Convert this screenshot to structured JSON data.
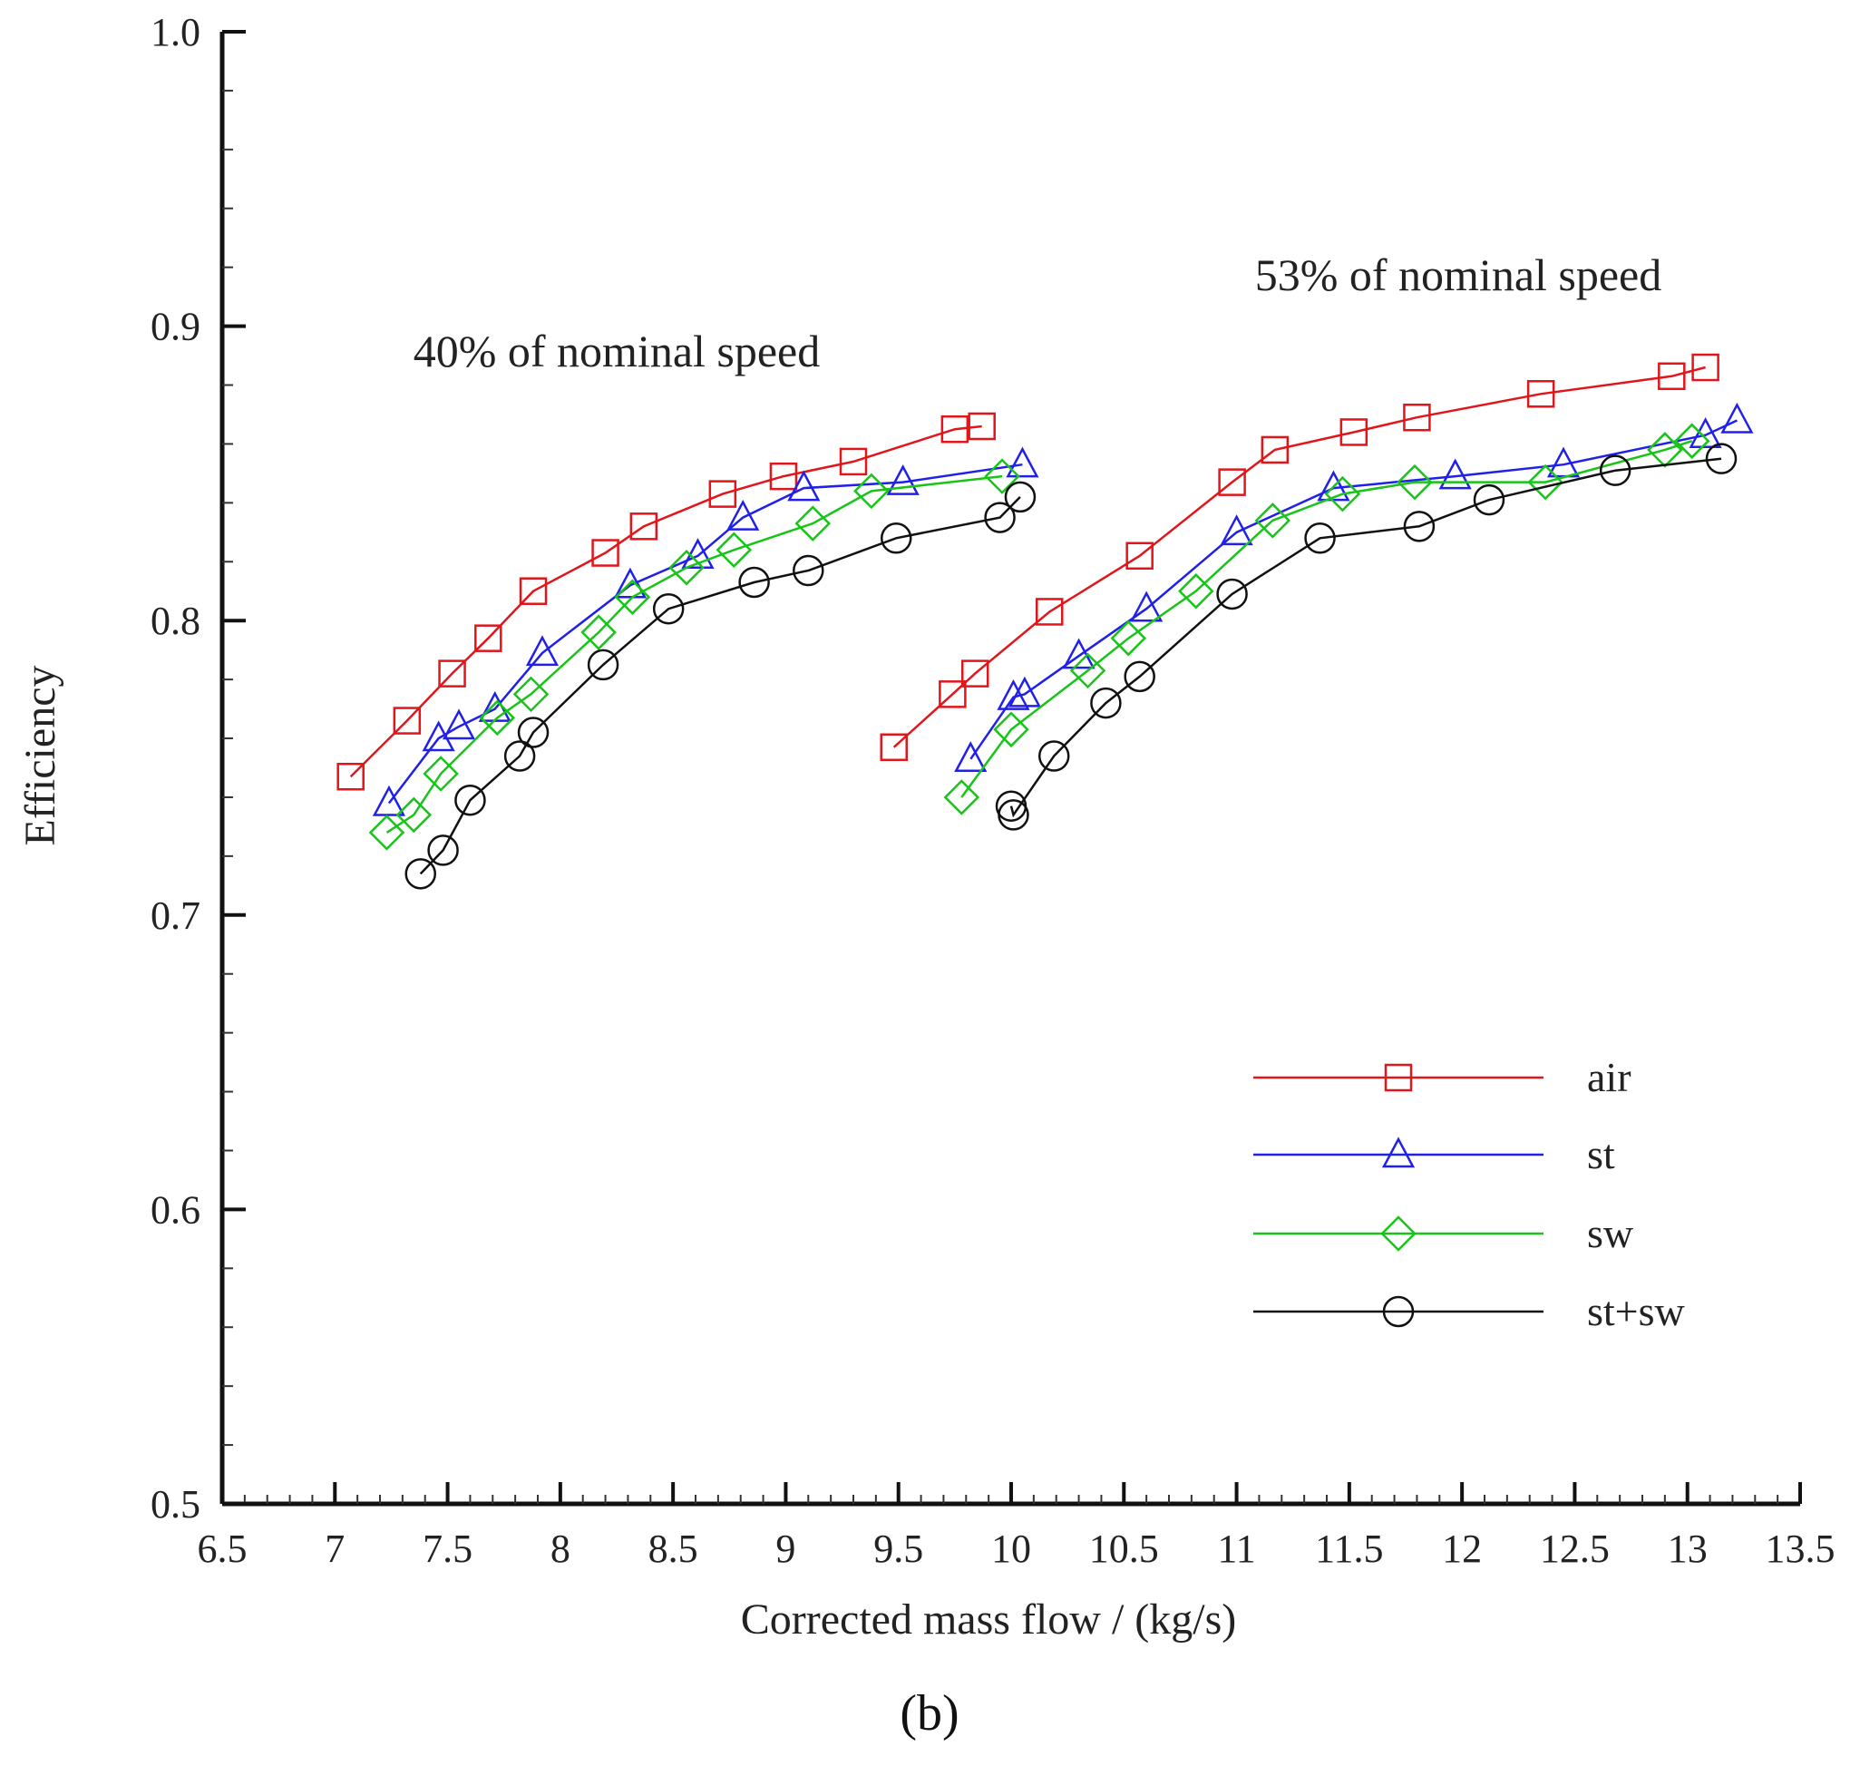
{
  "chart_data": {
    "type": "line",
    "xlabel": "Corrected mass flow / (kg/s)",
    "ylabel": "Efficiency",
    "xlim": [
      6.5,
      13.5
    ],
    "ylim": [
      0.5,
      1.0
    ],
    "x_major_ticks": [
      6.5,
      7,
      7.5,
      8,
      8.5,
      9,
      9.5,
      10,
      10.5,
      11,
      11.5,
      12,
      12.5,
      13,
      13.5
    ],
    "x_tick_labels": [
      "6.5",
      "7",
      "7.5",
      "8",
      "8.5",
      "9",
      "9.5",
      "10",
      "10.5",
      "11",
      "11.5",
      "12",
      "12.5",
      "13",
      "13.5"
    ],
    "x_minor_step": 0.1,
    "y_major_ticks": [
      0.5,
      0.6,
      0.7,
      0.8,
      0.9,
      1.0
    ],
    "y_tick_labels": [
      "0.5",
      "0.6",
      "0.7",
      "0.8",
      "0.9",
      "1.0"
    ],
    "y_minor_step": 0.02,
    "grid": false,
    "legend_position": "bottom-right",
    "annotations": [
      "40% of nominal speed",
      "53% of nominal speed"
    ],
    "panel_label": "(b)",
    "series": [
      {
        "name": "air",
        "color": "#e0161b",
        "marker": "square",
        "segments": [
          [
            [
              7.07,
              0.747
            ],
            [
              7.32,
              0.766
            ],
            [
              7.52,
              0.782
            ],
            [
              7.68,
              0.794
            ],
            [
              7.88,
              0.81
            ],
            [
              8.2,
              0.823
            ],
            [
              8.37,
              0.832
            ],
            [
              8.72,
              0.843
            ],
            [
              8.99,
              0.849
            ],
            [
              9.3,
              0.854
            ],
            [
              9.75,
              0.865
            ],
            [
              9.87,
              0.866
            ]
          ],
          [
            [
              9.48,
              0.757
            ],
            [
              9.74,
              0.775
            ],
            [
              9.84,
              0.782
            ],
            [
              10.17,
              0.803
            ],
            [
              10.57,
              0.822
            ],
            [
              10.98,
              0.847
            ],
            [
              11.17,
              0.858
            ],
            [
              11.52,
              0.864
            ],
            [
              11.8,
              0.869
            ],
            [
              12.35,
              0.877
            ],
            [
              12.93,
              0.883
            ],
            [
              13.08,
              0.886
            ]
          ]
        ]
      },
      {
        "name": "st",
        "color": "#2020e8",
        "marker": "triangle",
        "segments": [
          [
            [
              7.24,
              0.738
            ],
            [
              7.46,
              0.76
            ],
            [
              7.55,
              0.764
            ],
            [
              7.71,
              0.77
            ],
            [
              7.92,
              0.789
            ],
            [
              8.31,
              0.812
            ],
            [
              8.61,
              0.822
            ],
            [
              8.81,
              0.835
            ],
            [
              9.08,
              0.845
            ],
            [
              9.52,
              0.847
            ],
            [
              10.05,
              0.853
            ]
          ],
          [
            [
              9.82,
              0.753
            ],
            [
              10.01,
              0.774
            ],
            [
              10.06,
              0.775
            ],
            [
              10.3,
              0.788
            ],
            [
              10.6,
              0.804
            ],
            [
              11.0,
              0.83
            ],
            [
              11.43,
              0.845
            ],
            [
              11.97,
              0.849
            ],
            [
              12.45,
              0.853
            ],
            [
              13.08,
              0.863
            ],
            [
              13.22,
              0.868
            ]
          ]
        ]
      },
      {
        "name": "sw",
        "color": "#18c418",
        "marker": "diamond",
        "segments": [
          [
            [
              7.23,
              0.728
            ],
            [
              7.35,
              0.734
            ],
            [
              7.47,
              0.748
            ],
            [
              7.72,
              0.767
            ],
            [
              7.87,
              0.775
            ],
            [
              8.17,
              0.796
            ],
            [
              8.32,
              0.808
            ],
            [
              8.56,
              0.818
            ],
            [
              8.77,
              0.824
            ],
            [
              9.12,
              0.833
            ],
            [
              9.38,
              0.844
            ],
            [
              9.96,
              0.849
            ]
          ],
          [
            [
              9.78,
              0.74
            ],
            [
              10.0,
              0.763
            ],
            [
              10.34,
              0.783
            ],
            [
              10.52,
              0.794
            ],
            [
              10.82,
              0.81
            ],
            [
              11.16,
              0.834
            ],
            [
              11.47,
              0.843
            ],
            [
              11.79,
              0.847
            ],
            [
              12.37,
              0.847
            ],
            [
              12.9,
              0.858
            ],
            [
              13.02,
              0.861
            ]
          ]
        ]
      },
      {
        "name": "st+sw",
        "color": "#111111",
        "marker": "circle",
        "segments": [
          [
            [
              7.38,
              0.714
            ],
            [
              7.48,
              0.722
            ],
            [
              7.6,
              0.739
            ],
            [
              7.82,
              0.754
            ],
            [
              7.88,
              0.762
            ],
            [
              8.19,
              0.785
            ],
            [
              8.48,
              0.804
            ],
            [
              8.86,
              0.813
            ],
            [
              9.1,
              0.817
            ],
            [
              9.49,
              0.828
            ],
            [
              9.95,
              0.835
            ],
            [
              10.04,
              0.842
            ]
          ],
          [
            [
              10.0,
              0.737
            ],
            [
              10.01,
              0.734
            ],
            [
              10.19,
              0.754
            ],
            [
              10.42,
              0.772
            ],
            [
              10.57,
              0.781
            ],
            [
              10.98,
              0.809
            ],
            [
              11.37,
              0.828
            ],
            [
              11.81,
              0.832
            ],
            [
              12.12,
              0.841
            ],
            [
              12.68,
              0.851
            ],
            [
              13.15,
              0.855
            ]
          ]
        ]
      }
    ]
  }
}
